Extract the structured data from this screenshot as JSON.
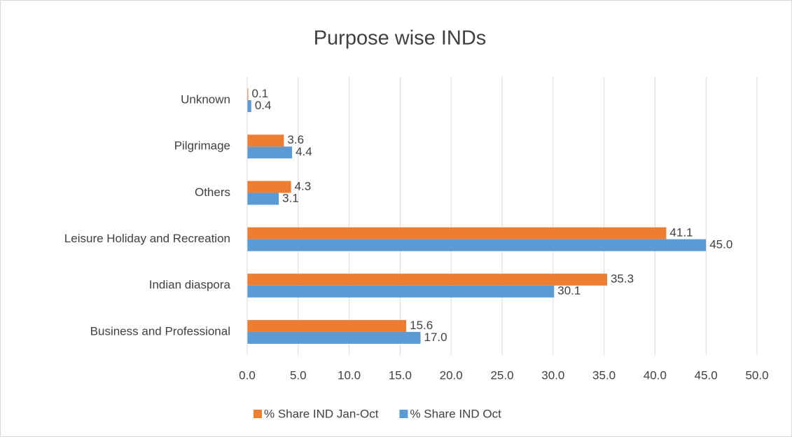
{
  "chart_data": {
    "type": "barh",
    "title": "Purpose wise INDs",
    "categories": [
      "Unknown",
      "Pilgrimage",
      "Others",
      "Leisure Holiday and Recreation",
      "Indian diaspora",
      "Business and Professional"
    ],
    "series": [
      {
        "name": "% Share IND Jan-Oct",
        "color": "#ed7d31",
        "values": [
          0.1,
          3.6,
          4.3,
          41.1,
          35.3,
          15.6
        ],
        "value_labels": [
          "0.1",
          "3.6",
          "4.3",
          "41.1",
          "35.3",
          "15.6"
        ]
      },
      {
        "name": "% Share IND Oct",
        "color": "#5b9bd5",
        "values": [
          0.4,
          4.4,
          3.1,
          45.0,
          30.1,
          17.0
        ],
        "value_labels": [
          "0.4",
          "4.4",
          "3.1",
          "45.0",
          "30.1",
          "17.0"
        ]
      }
    ],
    "xlim": [
      0,
      50
    ],
    "xticks": [
      {
        "value": 0,
        "label": "0.0"
      },
      {
        "value": 5,
        "label": "5.0"
      },
      {
        "value": 10,
        "label": "10.0"
      },
      {
        "value": 15,
        "label": "15.0"
      },
      {
        "value": 20,
        "label": "20.0"
      },
      {
        "value": 25,
        "label": "25.0"
      },
      {
        "value": 30,
        "label": "30.0"
      },
      {
        "value": 35,
        "label": "35.0"
      },
      {
        "value": 40,
        "label": "40.0"
      },
      {
        "value": 45,
        "label": "45.0"
      },
      {
        "value": 50,
        "label": "50.0"
      }
    ],
    "grid": true,
    "legend": "bottom"
  }
}
